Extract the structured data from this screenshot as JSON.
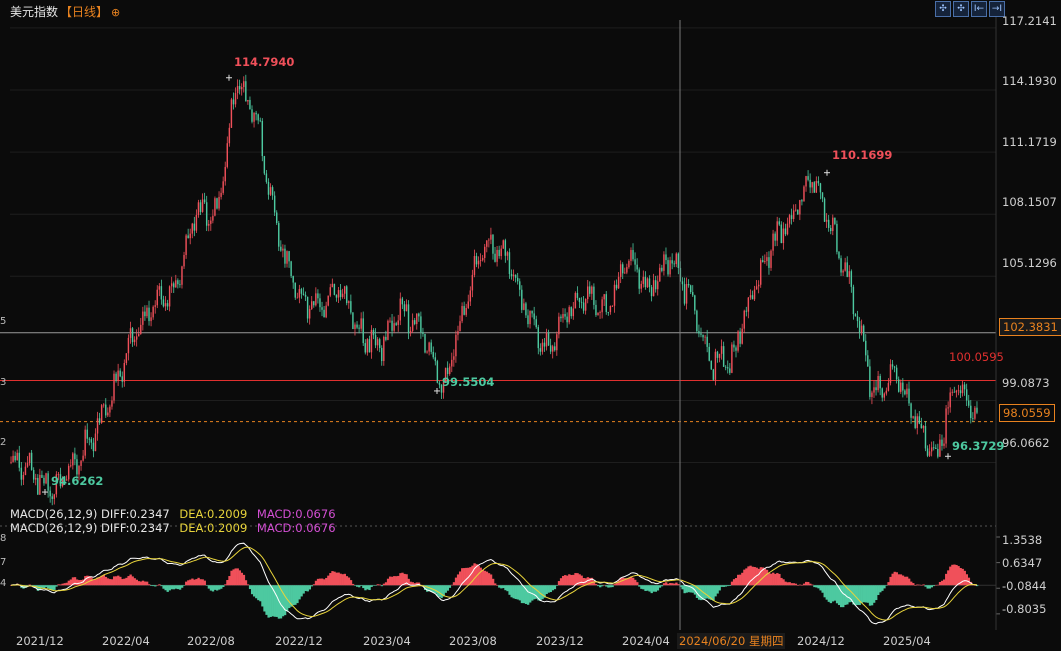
{
  "header": {
    "title": "美元指数",
    "period": "【日线】",
    "plus_icon": "⊕",
    "tools": [
      "✣",
      "✣",
      "I←",
      "→I"
    ]
  },
  "macd_legend": {
    "name": "MACD(26,12,9)",
    "diff": "DIFF:0.2347",
    "dea": "DEA:0.2009",
    "macd": "MACD:0.0676"
  },
  "y_axis": [
    "117.2141",
    "114.1930",
    "111.1719",
    "108.1507",
    "105.1296",
    "99.0873",
    "96.0662"
  ],
  "tags": {
    "level": "102.3831",
    "last": "98.0559"
  },
  "edge_labels": [
    "5",
    "3",
    "2",
    "8",
    "7",
    "4"
  ],
  "macd_axis": [
    "1.3538",
    "0.6347",
    "-0.0844",
    "-0.8035"
  ],
  "x_axis": [
    "2021/12",
    "2022/04",
    "2022/08",
    "2022/12",
    "2023/04",
    "2023/08",
    "2023/12",
    "2024/04",
    "2024/12",
    "2025/04"
  ],
  "crosshair_date": "2024/06/20 星期四",
  "annotations": {
    "high1": "114.7940",
    "low1": "94.6262",
    "low2": "99.5504",
    "high2": "110.1699",
    "level_red": "100.0595",
    "low3": "96.3729"
  },
  "chart_data": {
    "type": "candlestick",
    "title": "美元指数",
    "ylim": [
      94.0,
      117.6
    ],
    "x_range": [
      "2021/10",
      "2025/07"
    ],
    "anchors": [
      {
        "date": "2021/10",
        "value": 96.0
      },
      {
        "date": "2021/11",
        "value": 95.6
      },
      {
        "date": "2021/12",
        "value": 94.63
      },
      {
        "date": "2022/01",
        "value": 95.9
      },
      {
        "date": "2022/02",
        "value": 97.3
      },
      {
        "date": "2022/03",
        "value": 99.6
      },
      {
        "date": "2022/04",
        "value": 102.5
      },
      {
        "date": "2022/05",
        "value": 103.8
      },
      {
        "date": "2022/06",
        "value": 104.5
      },
      {
        "date": "2022/07",
        "value": 108.3
      },
      {
        "date": "2022/08",
        "value": 108.0
      },
      {
        "date": "2022/09",
        "value": 114.79
      },
      {
        "date": "2022/10",
        "value": 112.5
      },
      {
        "date": "2022/11",
        "value": 107.0
      },
      {
        "date": "2022/12",
        "value": 104.2
      },
      {
        "date": "2023/01",
        "value": 103.5
      },
      {
        "date": "2023/02",
        "value": 104.8
      },
      {
        "date": "2023/03",
        "value": 102.2
      },
      {
        "date": "2023/04",
        "value": 101.7
      },
      {
        "date": "2023/05",
        "value": 103.6
      },
      {
        "date": "2023/06",
        "value": 102.5
      },
      {
        "date": "2023/07",
        "value": 99.55
      },
      {
        "date": "2023/08",
        "value": 103.4
      },
      {
        "date": "2023/09",
        "value": 106.6
      },
      {
        "date": "2023/10",
        "value": 106.3
      },
      {
        "date": "2023/11",
        "value": 103.6
      },
      {
        "date": "2023/12",
        "value": 101.4
      },
      {
        "date": "2024/01",
        "value": 103.4
      },
      {
        "date": "2024/02",
        "value": 104.2
      },
      {
        "date": "2024/03",
        "value": 103.4
      },
      {
        "date": "2024/04",
        "value": 106.0
      },
      {
        "date": "2024/05",
        "value": 104.5
      },
      {
        "date": "2024/06",
        "value": 105.9
      },
      {
        "date": "2024/07",
        "value": 104.3
      },
      {
        "date": "2024/08",
        "value": 101.0
      },
      {
        "date": "2024/09",
        "value": 100.9
      },
      {
        "date": "2024/10",
        "value": 104.2
      },
      {
        "date": "2024/11",
        "value": 106.8
      },
      {
        "date": "2024/12",
        "value": 108.0
      },
      {
        "date": "2025/01",
        "value": 110.17
      },
      {
        "date": "2025/02",
        "value": 107.2
      },
      {
        "date": "2025/03",
        "value": 104.0
      },
      {
        "date": "2025/04",
        "value": 99.2
      },
      {
        "date": "2025/05",
        "value": 100.5
      },
      {
        "date": "2025/06",
        "value": 98.0
      },
      {
        "date": "2025/07",
        "value": 96.37
      },
      {
        "date": "2025/07b",
        "value": 100.06
      },
      {
        "date": "2025/07c",
        "value": 98.06
      }
    ],
    "horizontal_lines": [
      {
        "value": 102.3831,
        "color": "#9a9a9a"
      },
      {
        "value": 100.0595,
        "color": "#e0302f"
      },
      {
        "value": 98.0559,
        "color": "#e8821f",
        "dashed": true
      }
    ],
    "macd_ylim": [
      -1.2,
      1.55
    ],
    "macd_ticks": [
      1.3538,
      0.6347,
      -0.0844,
      -0.8035
    ],
    "colors": {
      "up": "#f0505a",
      "down": "#4dc9a0",
      "diff": "#ffffff",
      "dea": "#e8d43b"
    }
  }
}
